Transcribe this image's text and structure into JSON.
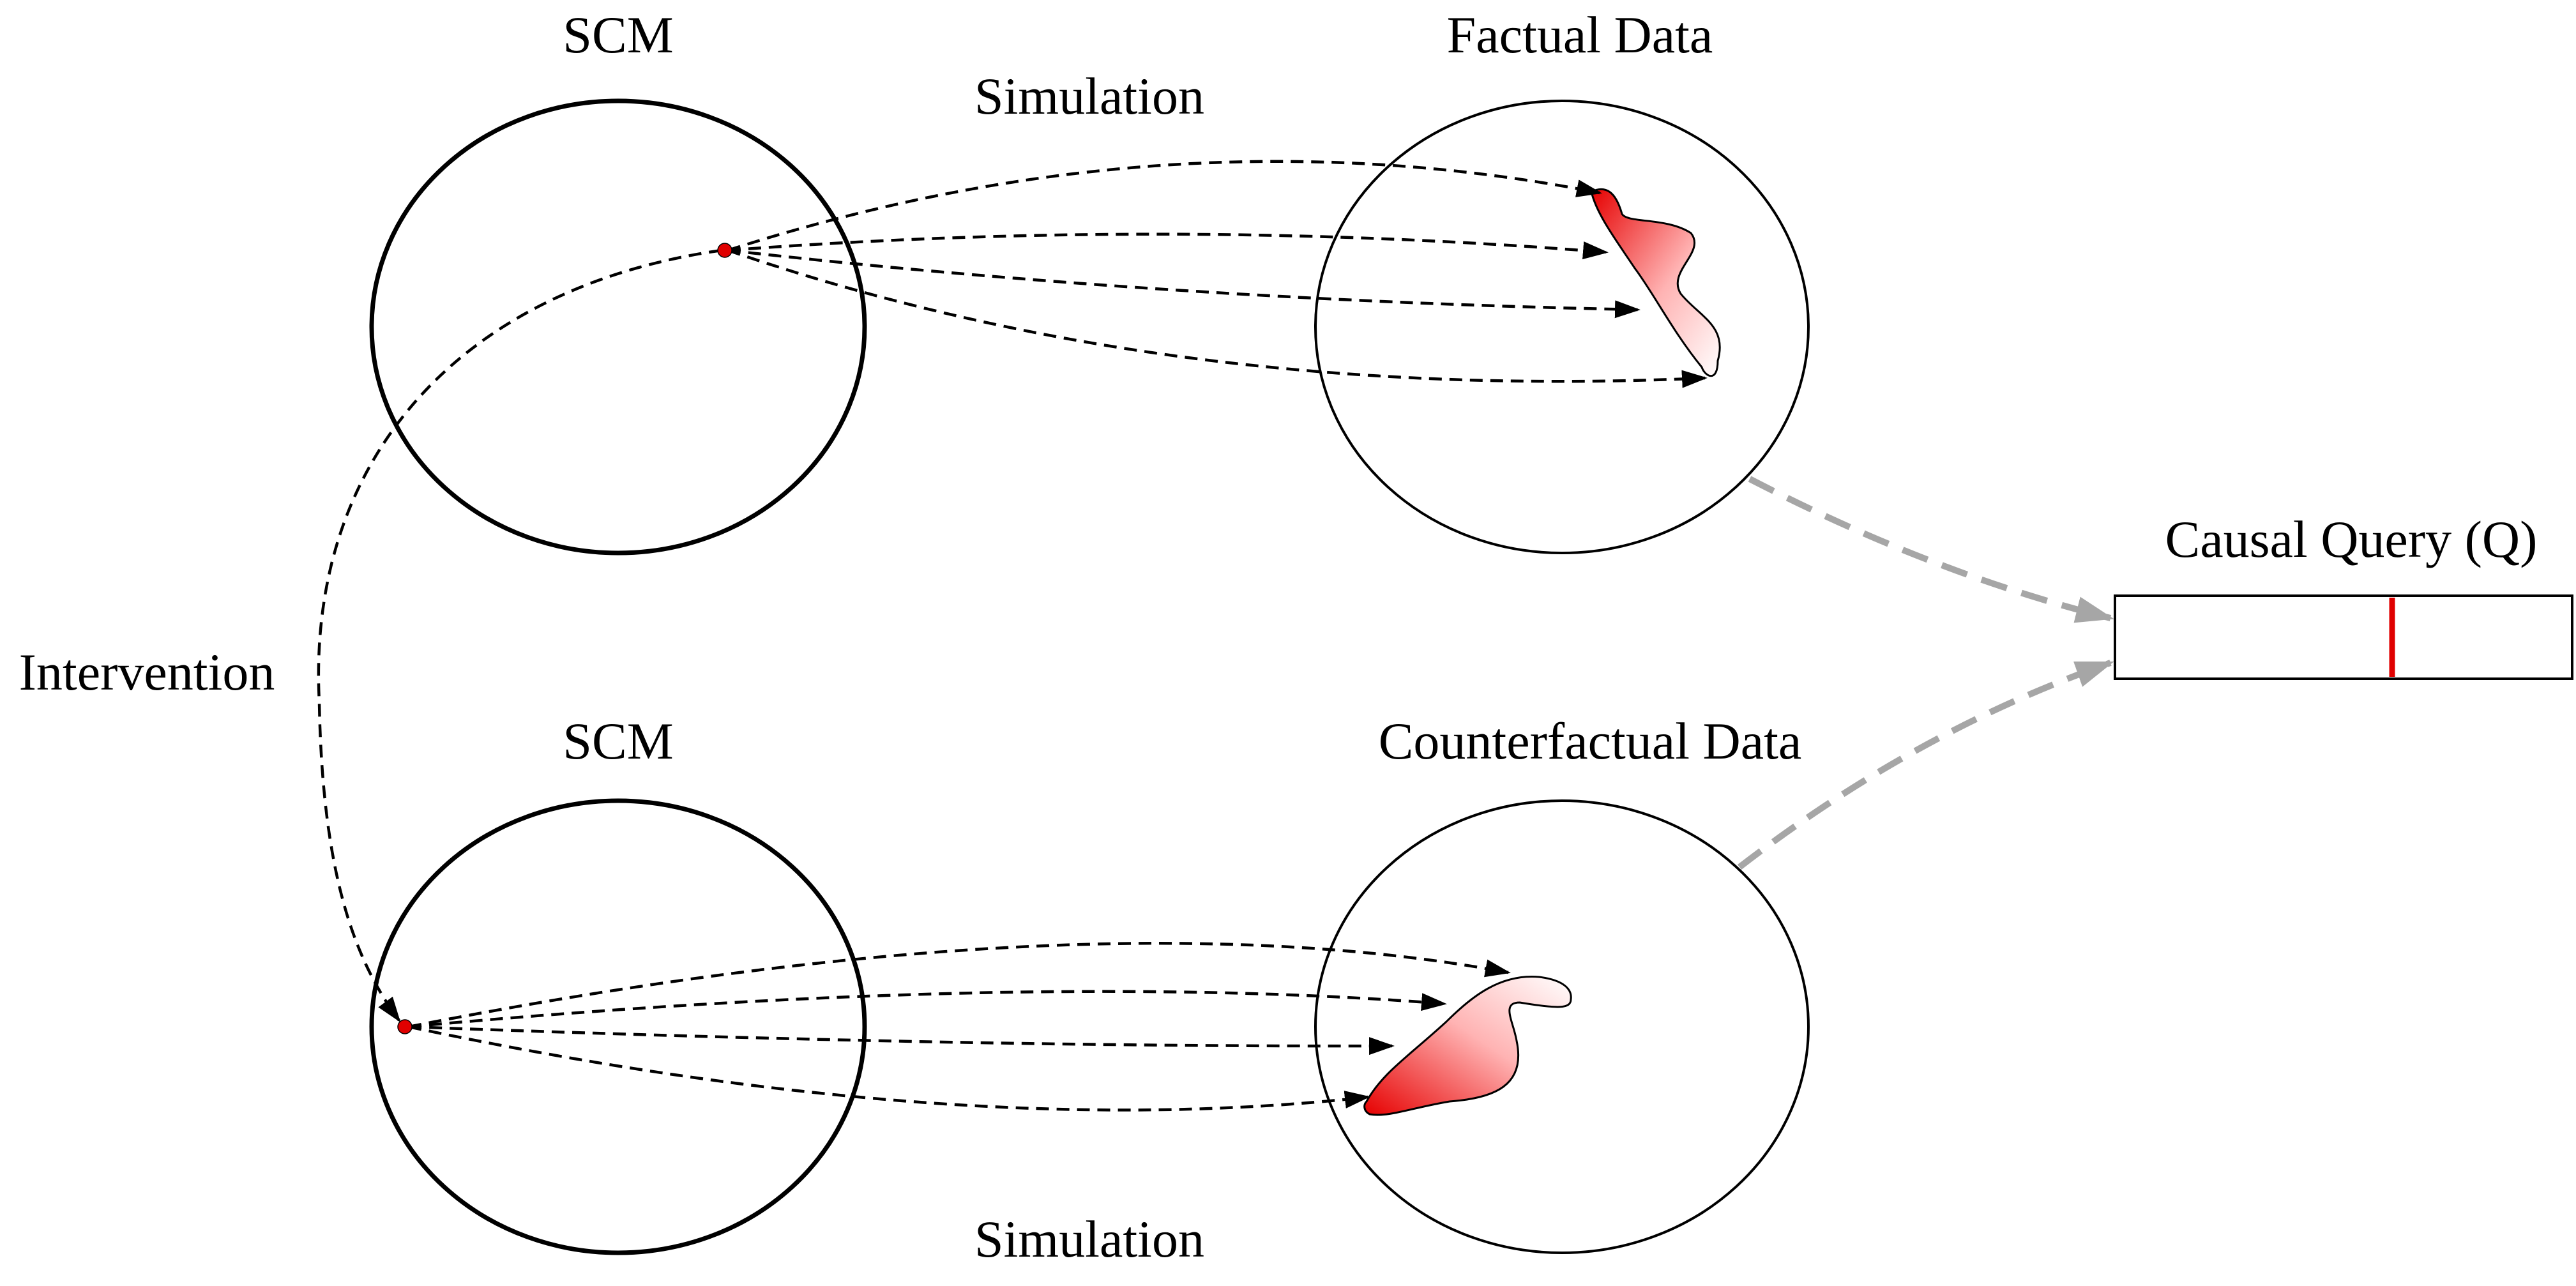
{
  "diagram": {
    "top_scm_label": "SCM",
    "bottom_scm_label": "SCM",
    "factual_label": "Factual Data",
    "counterfactual_label": "Counterfactual Data",
    "simulation_top_label": "Simulation",
    "simulation_bottom_label": "Simulation",
    "intervention_label": "Intervention",
    "query_label": "Causal Query (Q)"
  },
  "colors": {
    "point": "#e00000",
    "query_marker": "#e00000",
    "region_fill": "#ff2a2a",
    "gray_arrow": "#a6a6a6"
  }
}
